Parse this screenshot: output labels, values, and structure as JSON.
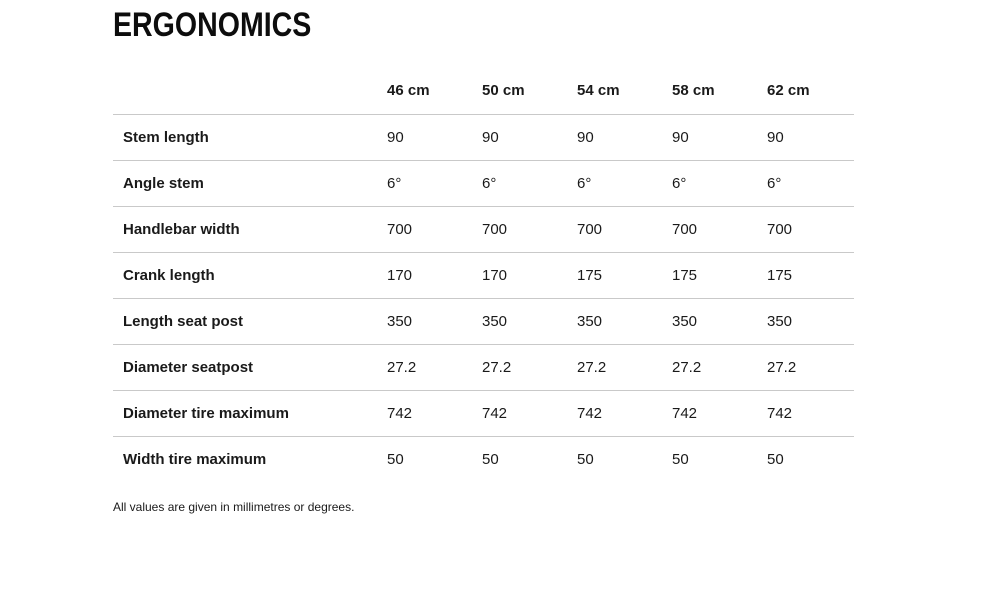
{
  "page": {
    "title": "ERGONOMICS",
    "footnote": "All values are given in millimetres or degrees."
  },
  "table": {
    "columns": [
      "46 cm",
      "50 cm",
      "54 cm",
      "58 cm",
      "62 cm"
    ],
    "rows": [
      {
        "label": "Stem length",
        "values": [
          "90",
          "90",
          "90",
          "90",
          "90"
        ]
      },
      {
        "label": "Angle stem",
        "values": [
          "6°",
          "6°",
          "6°",
          "6°",
          "6°"
        ]
      },
      {
        "label": "Handlebar width",
        "values": [
          "700",
          "700",
          "700",
          "700",
          "700"
        ]
      },
      {
        "label": "Crank length",
        "values": [
          "170",
          "170",
          "175",
          "175",
          "175"
        ]
      },
      {
        "label": "Length seat post",
        "values": [
          "350",
          "350",
          "350",
          "350",
          "350"
        ]
      },
      {
        "label": "Diameter seatpost",
        "values": [
          "27.2",
          "27.2",
          "27.2",
          "27.2",
          "27.2"
        ]
      },
      {
        "label": "Diameter tire maximum",
        "values": [
          "742",
          "742",
          "742",
          "742",
          "742"
        ]
      },
      {
        "label": "Width tire maximum",
        "values": [
          "50",
          "50",
          "50",
          "50",
          "50"
        ]
      }
    ]
  },
  "colors": {
    "text": "#1a1a1a",
    "title": "#0d0d0d",
    "line": "#c9c9c9",
    "bg": "#ffffff"
  }
}
